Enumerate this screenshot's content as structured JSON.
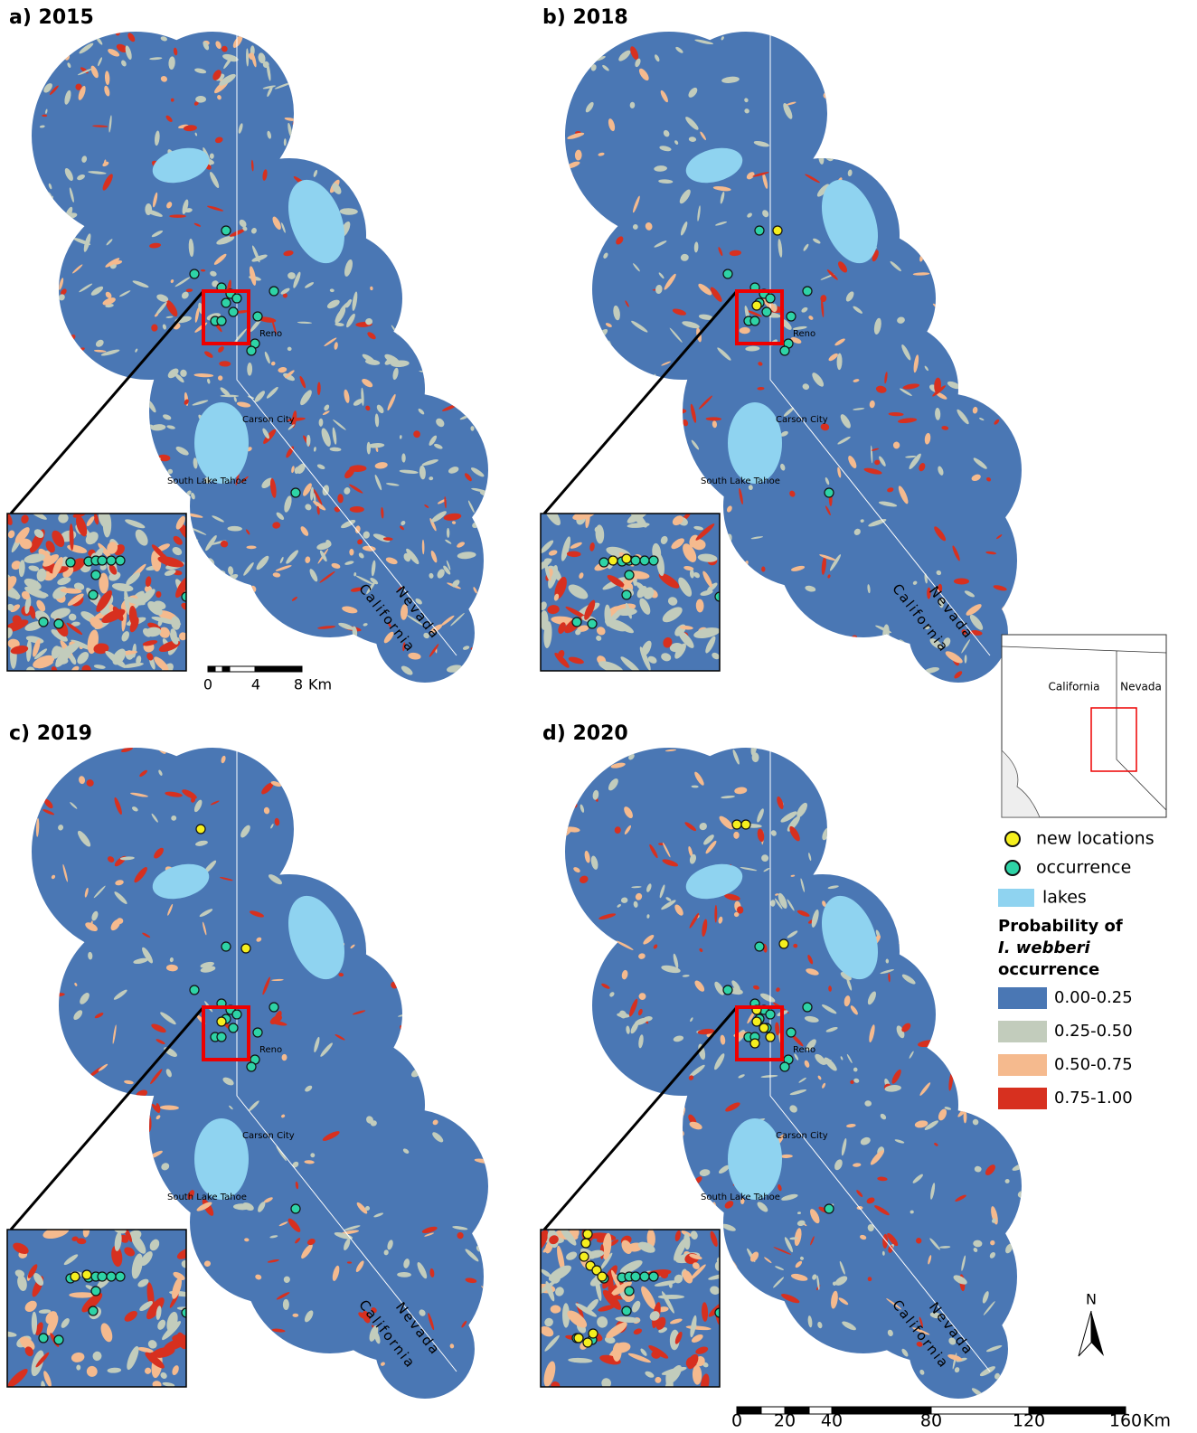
{
  "panels": [
    {
      "title": "a) 2015",
      "reno": "Reno",
      "carson": "Carson City",
      "tahoe": "South Lake Tahoe",
      "nevada": "Nevada",
      "california": "California"
    },
    {
      "title": "b) 2018",
      "reno": "Reno",
      "carson": "Carson City",
      "tahoe": "South Lake Tahoe",
      "nevada": "Nevada",
      "california": "California"
    },
    {
      "title": "c) 2019",
      "reno": "Reno",
      "carson": "Carson City",
      "tahoe": "South Lake Tahoe",
      "nevada": "Nevada",
      "california": "California"
    },
    {
      "title": "d) 2020",
      "reno": "Reno",
      "carson": "Carson City",
      "tahoe": "South Lake Tahoe",
      "nevada": "Nevada",
      "california": "California"
    }
  ],
  "scale_small": {
    "ticks": [
      "0",
      "4",
      "8"
    ],
    "unit": "Km"
  },
  "scale_large": {
    "ticks": [
      "0",
      "20",
      "40",
      "80",
      "120",
      "160"
    ],
    "unit": "Km"
  },
  "locator": {
    "california": "California",
    "nevada": "Nevada"
  },
  "legend": {
    "new": "new locations",
    "occ": "occurrence",
    "lakes": "lakes",
    "title": [
      "Probability of",
      "I. webberi",
      "occurrence"
    ],
    "classes": [
      {
        "label": "0.00-0.25",
        "color": "#4a77b4"
      },
      {
        "label": "0.25-0.50",
        "color": "#c2ccbc"
      },
      {
        "label": "0.50-0.75",
        "color": "#f5ba8e"
      },
      {
        "label": "0.75-1.00",
        "color": "#d7301f"
      }
    ]
  },
  "north": "N"
}
